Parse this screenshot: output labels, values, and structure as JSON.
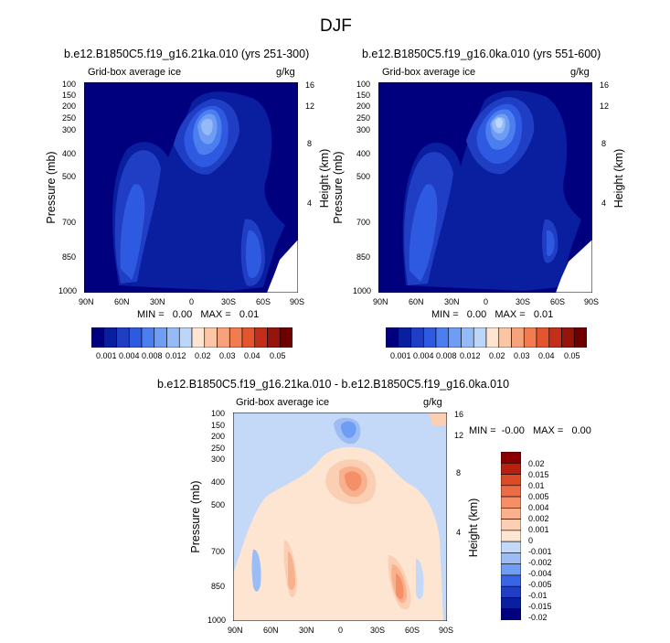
{
  "figure_title": "DJF",
  "colors": {
    "ice": [
      "#00007f",
      "#0a1ea0",
      "#1f3ec4",
      "#2e5ae2",
      "#4c7ef0",
      "#6f9df4",
      "#94bbf7",
      "#bcd6f9",
      "#fde5d2",
      "#fbc6a6",
      "#f6a27a",
      "#f07c4f",
      "#e4542d",
      "#c22e17",
      "#96150b",
      "#6e0000"
    ],
    "diff": [
      "#00007f",
      "#0a1ea0",
      "#1f3ec4",
      "#3a64e4",
      "#6f9df4",
      "#9bbcf5",
      "#c4d9f8",
      "#fde5d2",
      "#fbcfb3",
      "#f8b08d",
      "#f58f68",
      "#ec6c45",
      "#dc4a26",
      "#b8200f",
      "#8a0000"
    ]
  },
  "chart_data": [
    {
      "type": "heatmap",
      "panel": "left",
      "title": "b.e12.B1850C5.f19_g16.21ka.010 (yrs 251-300)",
      "subtitle_left": "Grid-box average ice",
      "subtitle_right": "g/kg",
      "ylabel": "Pressure (mb)",
      "ylabel_right": "Height (km)",
      "x_ticks": [
        "90N",
        "60N",
        "30N",
        "0",
        "30S",
        "60S",
        "90S"
      ],
      "y_ticks": [
        "100",
        "150",
        "200",
        "250",
        "300",
        "400",
        "500",
        "700",
        "850",
        "1000"
      ],
      "y_ticks_right": [
        "16",
        "12",
        "8",
        "4"
      ],
      "stats": "MIN =   0.00   MAX =   0.01",
      "colorbar_labels": [
        "0.001",
        "0.004",
        "0.008",
        "0.012",
        "0.02",
        "0.03",
        "0.04",
        "0.05"
      ]
    },
    {
      "type": "heatmap",
      "panel": "right",
      "title": "b.e12.B1850C5.f19_g16.0ka.010 (yrs 551-600)",
      "subtitle_left": "Grid-box average ice",
      "subtitle_right": "g/kg",
      "ylabel": "Pressure (mb)",
      "ylabel_right": "Height (km)",
      "x_ticks": [
        "90N",
        "60N",
        "30N",
        "0",
        "30S",
        "60S",
        "90S"
      ],
      "y_ticks": [
        "100",
        "150",
        "200",
        "250",
        "300",
        "400",
        "500",
        "700",
        "850",
        "1000"
      ],
      "y_ticks_right": [
        "16",
        "12",
        "8",
        "4"
      ],
      "stats": "MIN =   0.00   MAX =   0.01",
      "colorbar_labels": [
        "0.001",
        "0.004",
        "0.008",
        "0.012",
        "0.02",
        "0.03",
        "0.04",
        "0.05"
      ]
    },
    {
      "type": "heatmap",
      "panel": "difference",
      "title": "b.e12.B1850C5.f19_g16.21ka.010 - b.e12.B1850C5.f19_g16.0ka.010",
      "subtitle_left": "Grid-box average ice",
      "subtitle_right": "g/kg",
      "ylabel": "Pressure (mb)",
      "ylabel_right": "Height (km)",
      "x_ticks": [
        "90N",
        "60N",
        "30N",
        "0",
        "30S",
        "60S",
        "90S"
      ],
      "y_ticks": [
        "100",
        "150",
        "200",
        "250",
        "300",
        "400",
        "500",
        "700",
        "850",
        "1000"
      ],
      "y_ticks_right": [
        "16",
        "12",
        "8",
        "4"
      ],
      "stats": "MIN =  -0.00   MAX =   0.00",
      "colorbar_labels": [
        "0.02",
        "0.015",
        "0.01",
        "0.005",
        "0.004",
        "0.002",
        "0.001",
        "0",
        "-0.001",
        "-0.002",
        "-0.004",
        "-0.005",
        "-0.01",
        "-0.015",
        "-0.02"
      ]
    }
  ]
}
